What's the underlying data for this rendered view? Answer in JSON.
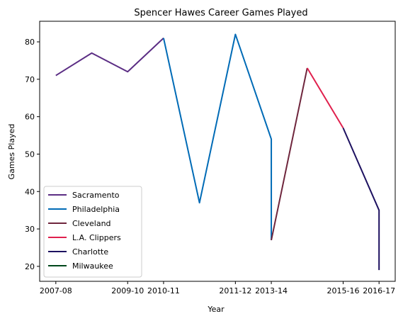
{
  "chart_data": {
    "type": "line",
    "title": "Spencer Hawes Career Games Played",
    "xlabel": "Year",
    "ylabel": "Games Played",
    "x_ticks": [
      "2007-08",
      "2009-10",
      "2010-11",
      "2011-12",
      "2013-14",
      "2015-16",
      "2016-17"
    ],
    "x_tick_positions": [
      0,
      2,
      3,
      5,
      6,
      8,
      9
    ],
    "x_range": [
      -0.45,
      9.45
    ],
    "ylim": [
      16,
      85.5
    ],
    "y_ticks": [
      20,
      30,
      40,
      50,
      60,
      70,
      80
    ],
    "grid": false,
    "legend": "lower-left",
    "series": [
      {
        "name": "Sacramento",
        "color": "#5b2d84",
        "points": [
          [
            0,
            71
          ],
          [
            1,
            77
          ],
          [
            2,
            72
          ],
          [
            3,
            81
          ]
        ]
      },
      {
        "name": "Philadelphia",
        "color": "#006bb6",
        "points": [
          [
            3,
            81
          ],
          [
            4,
            37
          ],
          [
            5,
            82
          ],
          [
            6,
            54
          ],
          [
            6,
            27
          ]
        ]
      },
      {
        "name": "Cleveland",
        "color": "#6f263d",
        "points": [
          [
            6,
            27
          ],
          [
            7,
            73
          ]
        ]
      },
      {
        "name": "L.A. Clippers",
        "color": "#e0204d",
        "points": [
          [
            7,
            73
          ],
          [
            8,
            57
          ]
        ]
      },
      {
        "name": "Charlotte",
        "color": "#1d1160",
        "points": [
          [
            8,
            57
          ],
          [
            9,
            35
          ],
          [
            9,
            19
          ]
        ]
      },
      {
        "name": "Milwaukee",
        "color": "#00471b",
        "points": []
      }
    ]
  }
}
